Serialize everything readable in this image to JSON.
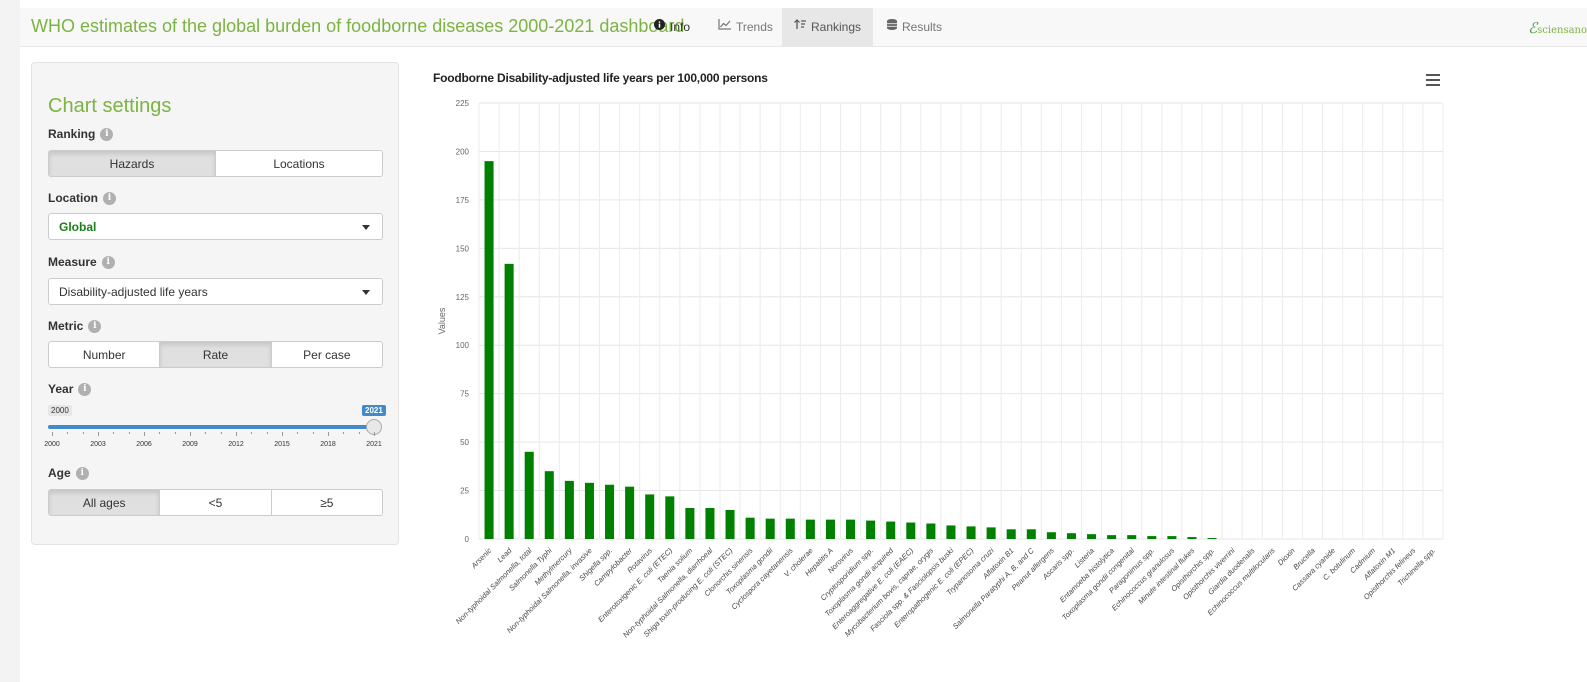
{
  "navbar": {
    "title": "WHO estimates of the global burden of foodborne diseases 2000-2021 dashboard",
    "tabs": [
      {
        "label": "Info",
        "icon": "info-icon"
      },
      {
        "label": "Trends",
        "icon": "line-chart-icon"
      },
      {
        "label": "Rankings",
        "icon": "sort-icon"
      },
      {
        "label": "Results",
        "icon": "database-icon"
      }
    ],
    "active_tab": "Rankings",
    "logo_text": "sciensano"
  },
  "settings": {
    "title": "Chart settings",
    "ranking": {
      "label": "Ranking",
      "options": [
        "Hazards",
        "Locations"
      ],
      "selected": "Hazards"
    },
    "location": {
      "label": "Location",
      "value": "Global"
    },
    "measure": {
      "label": "Measure",
      "value": "Disability-adjusted life years"
    },
    "metric": {
      "label": "Metric",
      "options": [
        "Number",
        "Rate",
        "Per case"
      ],
      "selected": "Rate"
    },
    "year": {
      "label": "Year",
      "min": "2000",
      "max": "2021",
      "value": "2021",
      "ticks": [
        "2000",
        "2003",
        "2006",
        "2009",
        "2012",
        "2015",
        "2018",
        "2021"
      ]
    },
    "age": {
      "label": "Age",
      "options": [
        "All ages",
        "<5",
        "≥5"
      ],
      "selected": "All ages"
    }
  },
  "chart_data": {
    "type": "bar",
    "title": "Foodborne Disability-adjusted life years per 100,000 persons",
    "ylabel": "Values",
    "xlabel": "",
    "ylim": [
      0,
      225
    ],
    "yticks": [
      0,
      25,
      50,
      75,
      100,
      125,
      150,
      175,
      200,
      225
    ],
    "grid": true,
    "bar_color": "#008000",
    "categories": [
      "Arsenic",
      "Lead",
      "Non-typhoidal Salmonella, total",
      "Salmonella Typhi",
      "Methylmercury",
      "Non-typhoidal Salmonella, invasive",
      "Shigella spp.",
      "Campylobacter",
      "Rotavirus",
      "Enterotoxigenic E. coli (ETEC)",
      "Taenia solium",
      "Non-typhoidal Salmonella, diarrhoeal",
      "Shiga toxin-producing E. coli (STEC)",
      "Clonorchis sinensis",
      "Toxoplasma gondii",
      "Cyclospora cayetanensis",
      "V. cholerae",
      "Hepatitis A",
      "Norovirus",
      "Cryptosporidium spp.",
      "Toxoplasma gondii acquired",
      "Enteroaggregative E. coli (EAEC)",
      "Mycobacterium bovis, caprae, orygis",
      "Fasciola spp. & Fasciolopsis buski",
      "Enteropathogenic E. coli (EPEC)",
      "Trypanosoma cruzi",
      "Aflatoxin B1",
      "Salmonella Paratyphi A, B, and C",
      "Peanut allergens",
      "Ascaris spp.",
      "Listeria",
      "Entamoeba histolytica",
      "Toxoplasma gondii congenital",
      "Paragonimus spp.",
      "Echinococcus granulosus",
      "Minute intestinal flukes",
      "Opisthorchis spp.",
      "Opisthorchis viverrini",
      "Giardia duodenalis",
      "Echinococcus multilocularis",
      "Dioxin",
      "Brucella",
      "Cassava cyanide",
      "C. botulinum",
      "Cadmium",
      "Aflatoxin M1",
      "Opisthorchis felineus",
      "Trichinella spp."
    ],
    "values": [
      195,
      142,
      45,
      35,
      30,
      29,
      28,
      27,
      23,
      22,
      16,
      16,
      15,
      11,
      10.5,
      10.5,
      10,
      10,
      10,
      9.5,
      9,
      8.5,
      8,
      7,
      6.5,
      6,
      5,
      5,
      3.5,
      3,
      2.5,
      2,
      2,
      1.5,
      1.5,
      1,
      0.5,
      0,
      0,
      0,
      0,
      0,
      0,
      0,
      0,
      0,
      0,
      0
    ]
  }
}
